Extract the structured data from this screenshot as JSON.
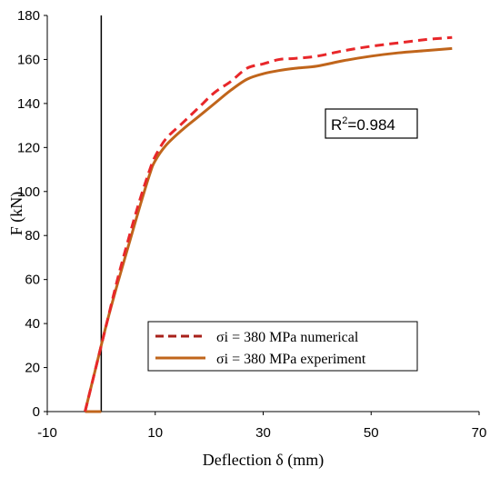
{
  "chart_data": {
    "type": "line",
    "title": "",
    "xlabel": "Deflection δ (mm)",
    "ylabel": "F (kN)",
    "xlim": [
      -10,
      70
    ],
    "ylim": [
      0,
      180
    ],
    "x_ticks": [
      -10,
      10,
      30,
      50,
      70
    ],
    "y_ticks": [
      0,
      20,
      40,
      60,
      80,
      100,
      120,
      140,
      160,
      180
    ],
    "grid": false,
    "legend_position": "bottom-center",
    "annotation": {
      "prefix": "R",
      "sup": "2",
      "value": "=0.984"
    },
    "series": [
      {
        "name": "σi = 380 MPa numerical",
        "color": "#e8272a",
        "style": "dashed",
        "x": [
          -3,
          -1,
          1,
          3,
          5,
          7,
          9,
          10,
          12,
          15,
          18,
          21,
          24,
          27,
          30,
          33,
          36,
          40,
          45,
          50,
          55,
          60,
          65
        ],
        "y": [
          0,
          20,
          40,
          60,
          78,
          95,
          110,
          116,
          124,
          131,
          138,
          145,
          150,
          156,
          158,
          160,
          160.5,
          161.5,
          164,
          166,
          167.5,
          169,
          170
        ]
      },
      {
        "name": "σi = 380 MPa experiment",
        "color": "#c0651b",
        "style": "solid",
        "x": [
          -3,
          -1,
          1,
          3,
          5,
          7,
          9,
          10,
          12,
          15,
          18,
          21,
          24,
          27,
          30,
          33,
          36,
          40,
          45,
          50,
          55,
          60,
          65
        ],
        "y": [
          0,
          20,
          40,
          58,
          75,
          92,
          108,
          114,
          121,
          128,
          134,
          140,
          146,
          151,
          153.5,
          155,
          156,
          157,
          159.5,
          161.5,
          163,
          164,
          165
        ]
      }
    ],
    "baseline_segment": {
      "x": [
        -3,
        0
      ],
      "y": [
        0,
        0
      ],
      "color": "#c0651b"
    }
  }
}
